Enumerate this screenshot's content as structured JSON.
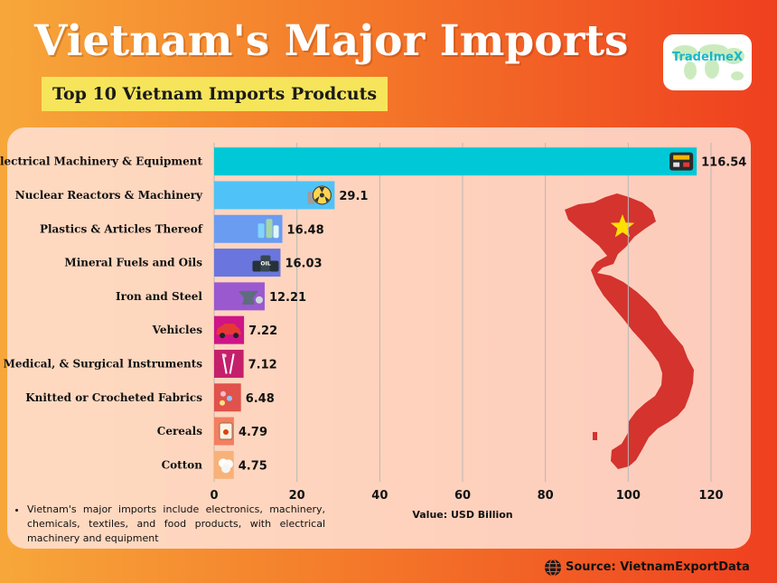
{
  "header": {
    "title": "Vietnam's Major Imports",
    "subtitle": "Top 10 Vietnam Imports Prodcuts"
  },
  "logo": {
    "text": "TradeImeX"
  },
  "note": "Vietnam's major imports include electronics, machinery, chemicals, textiles, and food products, with electrical machinery and equipment",
  "source": {
    "text": "Source: VietnamExportData",
    "icon": "globe-icon"
  },
  "chart_data": {
    "type": "bar",
    "orientation": "horizontal",
    "title": "Vietnam's Major Imports",
    "subtitle": "Top 10 Vietnam Imports Prodcuts",
    "xlabel": "Value: USD Billion",
    "ylabel": "",
    "xlim": [
      0,
      120
    ],
    "xticks": [
      0,
      20,
      40,
      60,
      80,
      100,
      120
    ],
    "grid": true,
    "categories": [
      "Electrical Machinery & Equipment",
      "Nuclear Reactors & Machinery",
      "Plastics & Articles Thereof",
      "Mineral Fuels and Oils",
      "Iron and Steel",
      "Vehicles",
      "Medical, & Surgical Instruments",
      "Knitted or Crocheted Fabrics",
      "Cereals",
      "Cotton"
    ],
    "values": [
      116.54,
      29.1,
      16.48,
      16.03,
      12.21,
      7.22,
      7.12,
      6.48,
      4.79,
      4.75
    ],
    "value_labels": [
      "116.54",
      "29.1",
      "16.48",
      "16.03",
      "12.21",
      "7.22",
      "7.12",
      "6.48",
      "4.79",
      "4.75"
    ],
    "colors": [
      "#00c8d6",
      "#4fc3f7",
      "#6a9cf2",
      "#6a76dd",
      "#9b59d0",
      "#cf1487",
      "#c51f6c",
      "#e0524b",
      "#f47f5e",
      "#f7b27a"
    ],
    "icons": [
      "generator-icon",
      "nuclear-icon",
      "plastic-bottles-icon",
      "oil-barrels-icon",
      "steel-anvil-icon",
      "car-icon",
      "surgical-tools-icon",
      "fabric-icon",
      "cereal-bag-icon",
      "cotton-icon"
    ]
  }
}
